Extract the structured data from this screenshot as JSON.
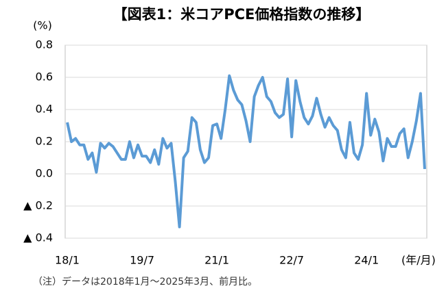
{
  "chart_data": {
    "type": "line",
    "title": "【図表1：米コアPCE価格指数の推移】",
    "y_unit": "(%)",
    "x_unit": "(年/月)",
    "note": "（注）データは2018年1月～2025年3月、前月比。",
    "categories": [
      "18/1",
      null,
      null,
      null,
      null,
      null,
      null,
      null,
      null,
      null,
      null,
      null,
      null,
      null,
      null,
      null,
      null,
      null,
      "19/7",
      null,
      null,
      null,
      null,
      null,
      null,
      null,
      null,
      null,
      null,
      null,
      null,
      null,
      null,
      null,
      null,
      null,
      "21/1",
      null,
      null,
      null,
      null,
      null,
      null,
      null,
      null,
      null,
      null,
      null,
      null,
      null,
      null,
      null,
      null,
      null,
      "22/7",
      null,
      null,
      null,
      null,
      null,
      null,
      null,
      null,
      null,
      null,
      null,
      null,
      null,
      null,
      null,
      null,
      null,
      "24/1",
      null,
      null,
      null,
      null,
      null,
      null,
      null,
      null,
      null,
      null,
      null,
      null,
      null,
      null
    ],
    "series": [
      {
        "color": "#5b9bd5",
        "values": [
          0.32,
          0.2,
          0.22,
          0.18,
          0.18,
          0.09,
          0.13,
          0.01,
          0.19,
          0.16,
          0.19,
          0.17,
          0.13,
          0.09,
          0.09,
          0.2,
          0.1,
          0.18,
          0.11,
          0.11,
          0.07,
          0.15,
          0.06,
          0.22,
          0.16,
          0.19,
          -0.05,
          -0.33,
          0.1,
          0.14,
          0.35,
          0.32,
          0.15,
          0.07,
          0.1,
          0.3,
          0.31,
          0.22,
          0.4,
          0.61,
          0.52,
          0.46,
          0.43,
          0.33,
          0.2,
          0.48,
          0.55,
          0.6,
          0.48,
          0.45,
          0.38,
          0.35,
          0.37,
          0.59,
          0.23,
          0.58,
          0.45,
          0.35,
          0.31,
          0.36,
          0.47,
          0.37,
          0.29,
          0.35,
          0.3,
          0.27,
          0.15,
          0.1,
          0.32,
          0.13,
          0.09,
          0.18,
          0.5,
          0.24,
          0.34,
          0.26,
          0.08,
          0.22,
          0.17,
          0.17,
          0.25,
          0.28,
          0.1,
          0.2,
          0.33,
          0.5,
          0.03
        ]
      }
    ],
    "ylim": [
      -0.4,
      0.8
    ],
    "yticks": [
      {
        "value": -0.4,
        "label": "▲ 0.4"
      },
      {
        "value": -0.2,
        "label": "▲ 0.2"
      },
      {
        "value": 0,
        "label": "0.0"
      },
      0.2,
      0.4,
      0.6,
      0.8
    ],
    "grid": true
  }
}
